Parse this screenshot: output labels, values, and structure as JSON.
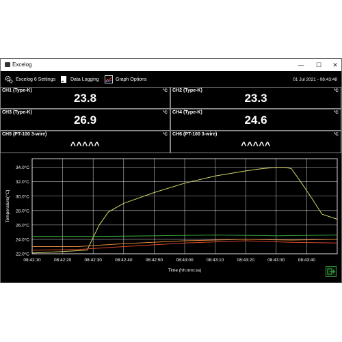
{
  "window": {
    "title": "Excelog",
    "minimize": "—",
    "maximize": "☐",
    "close": "✕"
  },
  "toolbar": {
    "settings_label": "Excelog 6 Settings",
    "logging_label": "Data Logging",
    "graph_label": "Graph Options",
    "datetime": "01 Jul 2021 - 08:43:48"
  },
  "channels": [
    {
      "label": "CH1 (Type-K)",
      "unit": "°C",
      "value": "23.8"
    },
    {
      "label": "CH2 (Type-K)",
      "unit": "°C",
      "value": "23.3"
    },
    {
      "label": "CH3 (Type-K)",
      "unit": "°C",
      "value": "26.9"
    },
    {
      "label": "CH4 (Type-K)",
      "unit": "°C",
      "value": "24.6"
    },
    {
      "label": "CH5 (PT-100 3-wire)",
      "unit": "°C",
      "value": "^^^^^"
    },
    {
      "label": "CH6 (PT-100 3-wire)",
      "unit": "°C",
      "value": "^^^^^"
    }
  ],
  "chart_data": {
    "type": "line",
    "xlabel": "Time (hh:mm:ss)",
    "ylabel": "Temperature(°C)",
    "x_ticks": [
      "08:42:10",
      "08:42:20",
      "08:42:30",
      "08:42:40",
      "08:42:50",
      "08:43:00",
      "08:43:10",
      "08:43:20",
      "08:43:30",
      "08:43:40"
    ],
    "y_ticks": [
      "22.0°C",
      "24.0°C",
      "26.0°C",
      "28.0°C",
      "30.0°C",
      "32.0°C",
      "34.0°C"
    ],
    "ylim": [
      22.0,
      35.2
    ],
    "xlim": [
      0,
      100
    ],
    "x_unit": "seconds after 08:42:10",
    "grid": true,
    "colors": {
      "grid": "#ffffff",
      "yellow": "#d8d86a",
      "green": "#3cb043",
      "red": "#d84a2a",
      "orange": "#e08a3a",
      "axis_text": "#ffffff"
    },
    "series": [
      {
        "color_key": "yellow",
        "x": [
          0,
          10,
          18,
          22,
          25,
          30,
          40,
          50,
          60,
          70,
          75,
          80,
          83,
          85,
          88,
          92,
          95,
          100
        ],
        "y": [
          22.1,
          22.3,
          22.5,
          26.0,
          27.8,
          29.0,
          30.5,
          31.8,
          32.8,
          33.5,
          33.8,
          34.0,
          34.0,
          33.8,
          32.0,
          29.5,
          27.5,
          26.8
        ]
      },
      {
        "color_key": "green",
        "x": [
          0,
          20,
          40,
          60,
          80,
          100
        ],
        "y": [
          24.4,
          24.4,
          24.5,
          24.6,
          24.5,
          24.6
        ]
      },
      {
        "color_key": "orange",
        "x": [
          0,
          15,
          30,
          50,
          70,
          85,
          100
        ],
        "y": [
          23.0,
          23.0,
          23.4,
          23.8,
          24.0,
          23.9,
          24.0
        ]
      },
      {
        "color_key": "red",
        "x": [
          0,
          15,
          30,
          50,
          70,
          85,
          100
        ],
        "y": [
          22.5,
          22.6,
          23.0,
          23.5,
          23.8,
          23.6,
          23.5
        ]
      }
    ]
  }
}
